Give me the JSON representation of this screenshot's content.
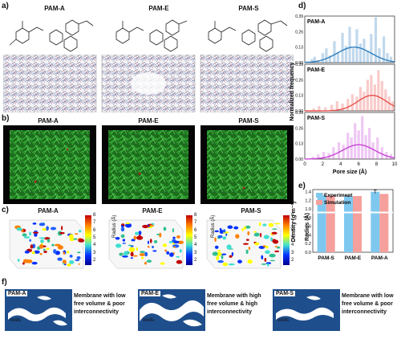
{
  "panels": {
    "a": {
      "label": "a)",
      "titles": [
        "PAM-A",
        "PAM-E",
        "PAM-S"
      ]
    },
    "b": {
      "label": "b)",
      "titles": [
        "PAM-A",
        "PAM-E",
        "PAM-S"
      ]
    },
    "c": {
      "label": "c)",
      "titles": [
        "PAM-A",
        "PAM-E",
        "PAM-S"
      ],
      "colorbar_ticks": [
        "8",
        "7",
        "6",
        "5",
        "4",
        "3",
        "2"
      ],
      "colorbar_label": "Radius (Å)"
    },
    "d": {
      "label": "d)"
    },
    "e": {
      "label": "e)"
    },
    "f": {
      "label": "f)",
      "items": [
        {
          "name": "PAM-A",
          "voids": "voids",
          "lines": [
            "Membrane with low",
            "free volume & poor",
            "interconnectivity"
          ]
        },
        {
          "name": "PAM-E",
          "voids": "voids",
          "lines": [
            "Membrane with high",
            "free volume & high",
            "interconnectivity"
          ]
        },
        {
          "name": "PAM-S",
          "voids": "voids",
          "lines": [
            "Membrane with low",
            "free volume & poor",
            "interconnectivity"
          ]
        }
      ]
    }
  },
  "colors": {
    "pamA": "#2f7fc1",
    "pamE": "#e8534f",
    "pamS": "#c847d6",
    "experiment": "#7ec8f0",
    "simulation": "#f5a09c",
    "green": "#1f8a1f",
    "membrane": "#1f4e8c"
  },
  "chart_data": [
    {
      "type": "bar",
      "title": "",
      "xlabel": "Pore size (Å)",
      "ylabel": "Normalized frequency",
      "xlim": [
        0,
        10
      ],
      "ylim": [
        0,
        0.39
      ],
      "x_ticks": [
        "0",
        "2",
        "4",
        "6",
        "8",
        "10"
      ],
      "y_ticks": [
        "0.00",
        "0.13",
        "0.26",
        "0.39"
      ],
      "series": [
        {
          "name": "PAM-A",
          "peak_x": 5.5,
          "sigma": 1.9,
          "peak_y": 0.13,
          "bars": [
            [
              0.8,
              0.03
            ],
            [
              1.1,
              0.05
            ],
            [
              1.5,
              0.02
            ],
            [
              2.0,
              0.08
            ],
            [
              2.4,
              0.12
            ],
            [
              2.8,
              0.06
            ],
            [
              3.3,
              0.18
            ],
            [
              3.7,
              0.09
            ],
            [
              4.2,
              0.25
            ],
            [
              4.6,
              0.14
            ],
            [
              5.0,
              0.3
            ],
            [
              5.4,
              0.12
            ],
            [
              5.8,
              0.28
            ],
            [
              6.2,
              0.16
            ],
            [
              6.6,
              0.2
            ],
            [
              7.0,
              0.1
            ],
            [
              7.4,
              0.24
            ],
            [
              7.9,
              0.38
            ],
            [
              8.3,
              0.12
            ],
            [
              8.8,
              0.22
            ],
            [
              9.2,
              0.08
            ],
            [
              9.6,
              0.05
            ]
          ]
        },
        {
          "name": "PAM-E",
          "peak_x": 7.5,
          "sigma": 1.6,
          "peak_y": 0.13,
          "bars": [
            [
              1.0,
              0.02
            ],
            [
              1.6,
              0.04
            ],
            [
              2.3,
              0.03
            ],
            [
              3.0,
              0.05
            ],
            [
              3.6,
              0.08
            ],
            [
              4.2,
              0.06
            ],
            [
              4.8,
              0.1
            ],
            [
              5.3,
              0.14
            ],
            [
              5.8,
              0.12
            ],
            [
              6.2,
              0.2
            ],
            [
              6.6,
              0.16
            ],
            [
              7.0,
              0.26
            ],
            [
              7.4,
              0.3
            ],
            [
              7.8,
              0.22
            ],
            [
              8.2,
              0.34
            ],
            [
              8.6,
              0.25
            ],
            [
              9.0,
              0.18
            ],
            [
              9.4,
              0.12
            ],
            [
              9.8,
              0.08
            ]
          ]
        },
        {
          "name": "PAM-S",
          "peak_x": 6.0,
          "sigma": 1.8,
          "peak_y": 0.12,
          "bars": [
            [
              0.9,
              0.02
            ],
            [
              1.5,
              0.04
            ],
            [
              2.1,
              0.06
            ],
            [
              2.7,
              0.05
            ],
            [
              3.2,
              0.1
            ],
            [
              3.8,
              0.14
            ],
            [
              4.3,
              0.12
            ],
            [
              4.8,
              0.22
            ],
            [
              5.2,
              0.18
            ],
            [
              5.6,
              0.3
            ],
            [
              6.0,
              0.24
            ],
            [
              6.4,
              0.36
            ],
            [
              6.8,
              0.2
            ],
            [
              7.2,
              0.26
            ],
            [
              7.6,
              0.14
            ],
            [
              8.1,
              0.18
            ],
            [
              8.6,
              0.1
            ],
            [
              9.1,
              0.06
            ],
            [
              9.6,
              0.04
            ]
          ]
        }
      ]
    },
    {
      "type": "bar",
      "title": "",
      "xlabel": "",
      "ylabel": "Density (g m⁻³)",
      "categories": [
        "PAM-S",
        "PAM-E",
        "PAM-A"
      ],
      "ylim": [
        0.0,
        1.45
      ],
      "y_ticks": [
        "0.0",
        "0.2",
        "0.4",
        "0.6",
        "0.8",
        "1.0",
        "1.2",
        "1.4"
      ],
      "legend_position": "top-left",
      "series": [
        {
          "name": "Experiment",
          "values": [
            1.32,
            1.29,
            1.4
          ],
          "errors": [
            0.03,
            0.01,
            0.04
          ]
        },
        {
          "name": "Simulation",
          "values": [
            1.31,
            1.3,
            1.35
          ]
        }
      ]
    }
  ]
}
